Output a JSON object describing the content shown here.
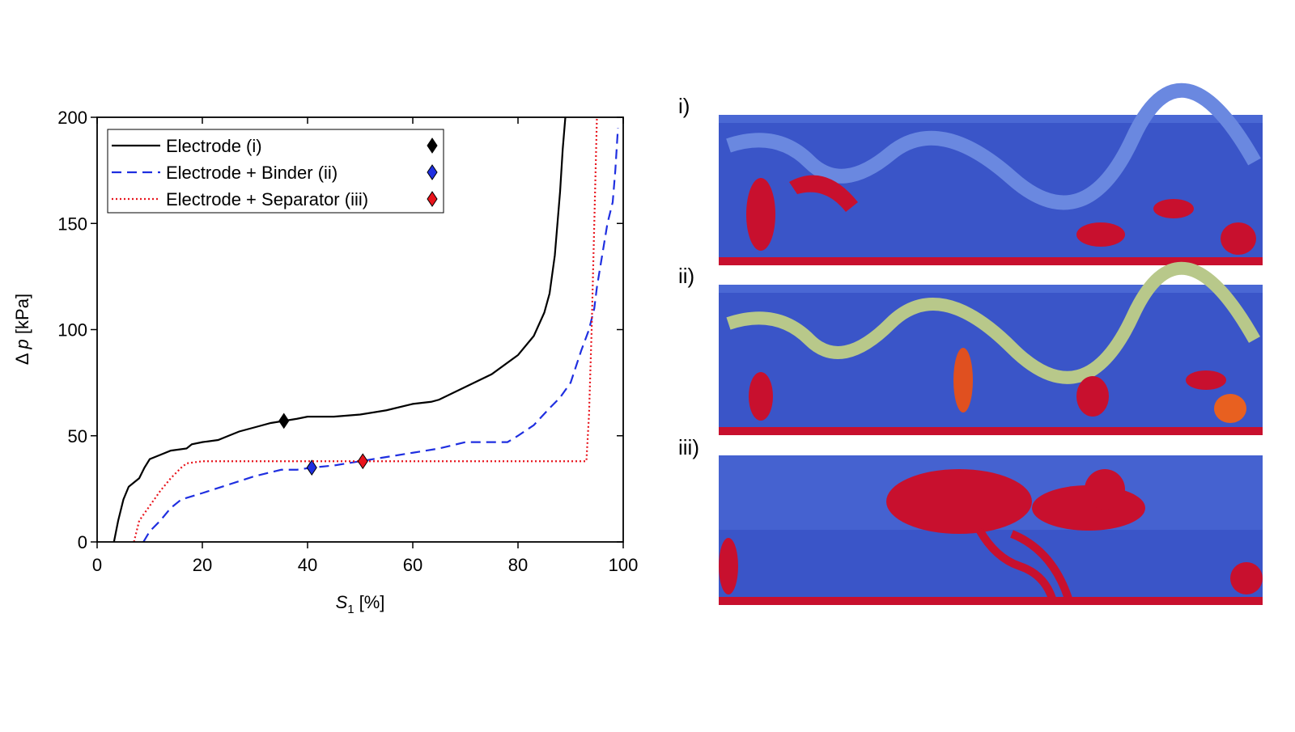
{
  "chart_data": {
    "type": "line",
    "xlabel": {
      "symbol": "S",
      "subscript": "1",
      "unit": "[%]"
    },
    "ylabel": {
      "symbol": "Δ",
      "variable": "p",
      "unit": "[kPa]"
    },
    "xlim": [
      0,
      100
    ],
    "xticks": [
      0,
      20,
      40,
      60,
      80,
      100
    ],
    "ylim": [
      0,
      200
    ],
    "yticks": [
      0,
      50,
      100,
      150,
      200
    ],
    "legend": "upper left",
    "series": [
      {
        "name": "Electrode (i)",
        "color": "#000000",
        "dash": "solid",
        "x": [
          3.2,
          4,
          5,
          6,
          7,
          8,
          9,
          10,
          12,
          14,
          17,
          18,
          20,
          23,
          25,
          27,
          30,
          33,
          35.5,
          38,
          40,
          45,
          50,
          55,
          60,
          63.5,
          65,
          70,
          75,
          80,
          83,
          85,
          86,
          87,
          88,
          88.5,
          89
        ],
        "y": [
          0,
          10,
          20,
          26,
          28,
          30,
          35,
          39,
          41,
          43,
          44,
          46,
          47,
          48,
          50,
          52,
          54,
          56,
          57,
          58,
          59,
          59,
          60,
          62,
          65,
          66,
          67,
          73,
          79,
          88,
          97,
          108,
          117,
          135,
          165,
          185,
          200
        ],
        "marker": {
          "x": 35.5,
          "y": 57
        }
      },
      {
        "name": "Electrode + Binder (ii)",
        "color": "#1f2fe0",
        "dash": "dashed",
        "x": [
          8.8,
          10,
          12,
          14,
          16,
          20,
          25,
          30,
          35,
          38,
          40.8,
          45,
          50,
          55,
          60,
          65,
          70,
          75,
          78,
          80,
          83,
          86,
          88,
          90,
          92,
          93.5,
          94.5,
          95,
          96,
          97,
          98,
          98.5,
          99
        ],
        "y": [
          0,
          5,
          10,
          16,
          20,
          23,
          27,
          31,
          34,
          34,
          35,
          36,
          38,
          40,
          42,
          44,
          47,
          47,
          47,
          50,
          55,
          63,
          68,
          75,
          90,
          100,
          110,
          120,
          135,
          150,
          160,
          175,
          195
        ],
        "marker": {
          "x": 40.8,
          "y": 35
        }
      },
      {
        "name": "Electrode + Separator (iii)",
        "color": "#e8141c",
        "dash": "dotted",
        "x": [
          7,
          8,
          10,
          12,
          14,
          16,
          17,
          20,
          93,
          93.5,
          94,
          94.5,
          95
        ],
        "y": [
          0,
          10,
          17,
          24,
          30,
          35,
          37,
          38,
          38,
          60,
          100,
          150,
          200
        ],
        "marker": {
          "x": 50.5,
          "y": 38
        }
      }
    ]
  },
  "panels": [
    {
      "label": "i)"
    },
    {
      "label": "ii)"
    },
    {
      "label": "iii)"
    }
  ]
}
